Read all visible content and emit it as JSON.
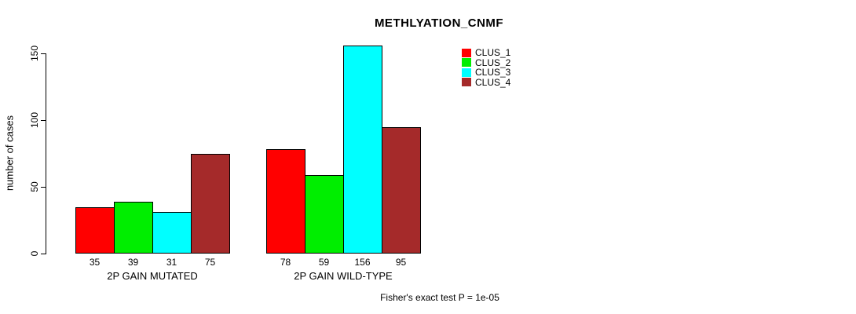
{
  "page": {
    "background": "#ffffff",
    "text_color": "#000000"
  },
  "chart_data": {
    "type": "bar",
    "title": "METHLYATION_CNMF",
    "ylabel": "number of cases",
    "xlabel": "",
    "categories": [
      "2P GAIN MUTATED",
      "2P GAIN WILD-TYPE"
    ],
    "series": [
      {
        "name": "CLUS_1",
        "color": "#FF0000",
        "values": [
          35,
          78
        ]
      },
      {
        "name": "CLUS_2",
        "color": "#00EE00",
        "values": [
          39,
          59
        ]
      },
      {
        "name": "CLUS_3",
        "color": "#00FFFF",
        "values": [
          31,
          156
        ]
      },
      {
        "name": "CLUS_4",
        "color": "#A52A2A",
        "values": [
          75,
          95
        ]
      }
    ],
    "bar_value_labels": [
      [
        35,
        39,
        31,
        75
      ],
      [
        78,
        59,
        156,
        95
      ]
    ],
    "yticks": [
      0,
      50,
      100,
      150
    ],
    "ylim": [
      0,
      157
    ],
    "grid": false,
    "legend_position": "top-right",
    "legend_entries": [
      "CLUS_1",
      "CLUS_2",
      "CLUS_3",
      "CLUS_4"
    ],
    "bar_edge_color": "#000000",
    "axis_color": "#000000",
    "annotation": "Fisher's exact test P = 1e-05"
  }
}
